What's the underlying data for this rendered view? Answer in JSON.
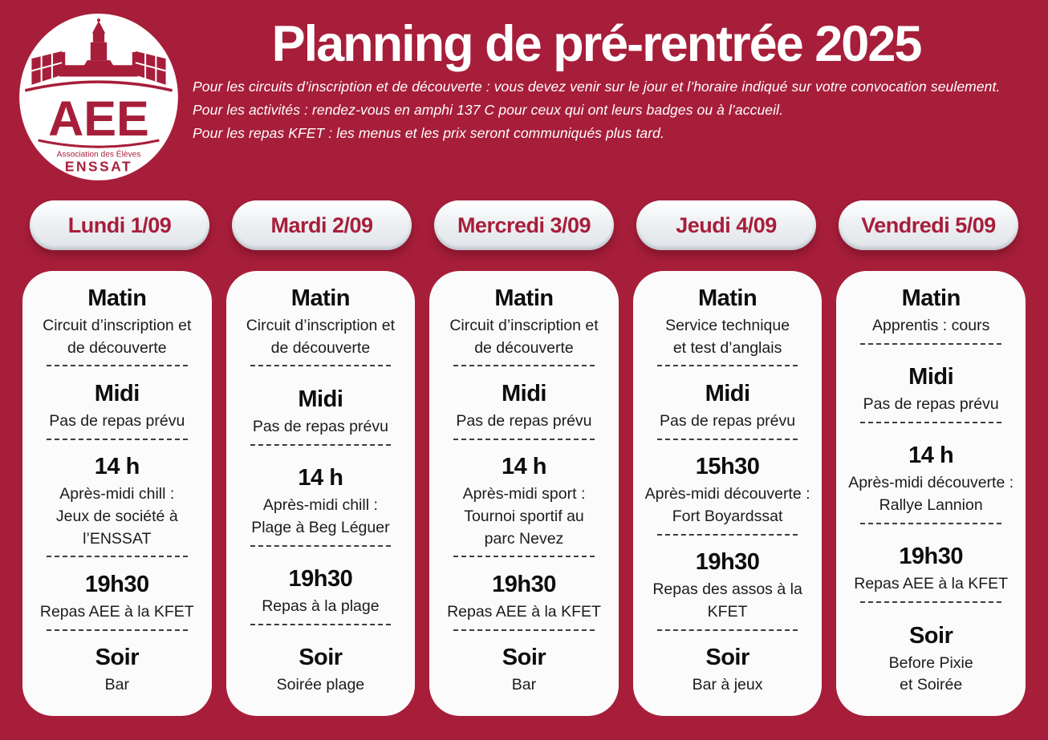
{
  "theme": {
    "background": "#A71E3A",
    "card_bg": "#FCFBFB",
    "pill_bg": "#EAEDEF",
    "accent": "#A71E3A",
    "text_dark": "#1c1c1c",
    "text_light": "#FFFFFF"
  },
  "logo": {
    "acronym": "AEE",
    "association": "Association des Élèves",
    "school": "ENSSAT"
  },
  "header": {
    "title": "Planning de pré-rentrée 2025",
    "notes": [
      "Pour les circuits d’inscription et de découverte : vous devez venir sur le jour et l’horaire indiqué sur votre convocation seulement.",
      "Pour les activités : rendez-vous en amphi 137 C pour ceux qui ont leurs badges ou à l’accueil.",
      "Pour les repas KFET : les menus et les prix seront communiqués plus tard."
    ]
  },
  "days": [
    {
      "label": "Lundi 1/09",
      "slots": [
        {
          "time": "Matin",
          "activity": "Circuit d’inscription et\nde découverte"
        },
        {
          "time": "Midi",
          "activity": "Pas de repas prévu"
        },
        {
          "time": "14 h",
          "activity": "Après-midi chill :\nJeux de société à\nl’ENSSAT"
        },
        {
          "time": "19h30",
          "activity": "Repas AEE à la KFET"
        },
        {
          "time": "Soir",
          "activity": "Bar"
        }
      ]
    },
    {
      "label": "Mardi 2/09",
      "slots": [
        {
          "time": "Matin",
          "activity": "Circuit d’inscription et\nde découverte"
        },
        {
          "time": "Midi",
          "activity": "Pas de repas prévu"
        },
        {
          "time": "14 h",
          "activity": "Après-midi chill :\nPlage à Beg Léguer"
        },
        {
          "time": "19h30",
          "activity": "Repas à la plage"
        },
        {
          "time": "Soir",
          "activity": "Soirée plage"
        }
      ]
    },
    {
      "label": "Mercredi 3/09",
      "slots": [
        {
          "time": "Matin",
          "activity": "Circuit d’inscription et\nde découverte"
        },
        {
          "time": "Midi",
          "activity": "Pas de repas prévu"
        },
        {
          "time": "14 h",
          "activity": "Après-midi sport :\nTournoi sportif au\nparc Nevez"
        },
        {
          "time": "19h30",
          "activity": "Repas AEE à la KFET"
        },
        {
          "time": "Soir",
          "activity": "Bar"
        }
      ]
    },
    {
      "label": "Jeudi 4/09",
      "slots": [
        {
          "time": "Matin",
          "activity": "Service technique\net test d’anglais"
        },
        {
          "time": "Midi",
          "activity": "Pas de repas prévu"
        },
        {
          "time": "15h30",
          "activity": "Après-midi découverte :\nFort Boyardssat"
        },
        {
          "time": "19h30",
          "activity": "Repas des assos à la\nKFET"
        },
        {
          "time": "Soir",
          "activity": "Bar à jeux"
        }
      ]
    },
    {
      "label": "Vendredi 5/09",
      "slots": [
        {
          "time": "Matin",
          "activity": "Apprentis : cours"
        },
        {
          "time": "Midi",
          "activity": "Pas de repas prévu"
        },
        {
          "time": "14 h",
          "activity": "Après-midi découverte :\nRallye Lannion"
        },
        {
          "time": "19h30",
          "activity": "Repas AEE à la KFET"
        },
        {
          "time": "Soir",
          "activity": "Before Pixie\net Soirée"
        }
      ]
    }
  ]
}
